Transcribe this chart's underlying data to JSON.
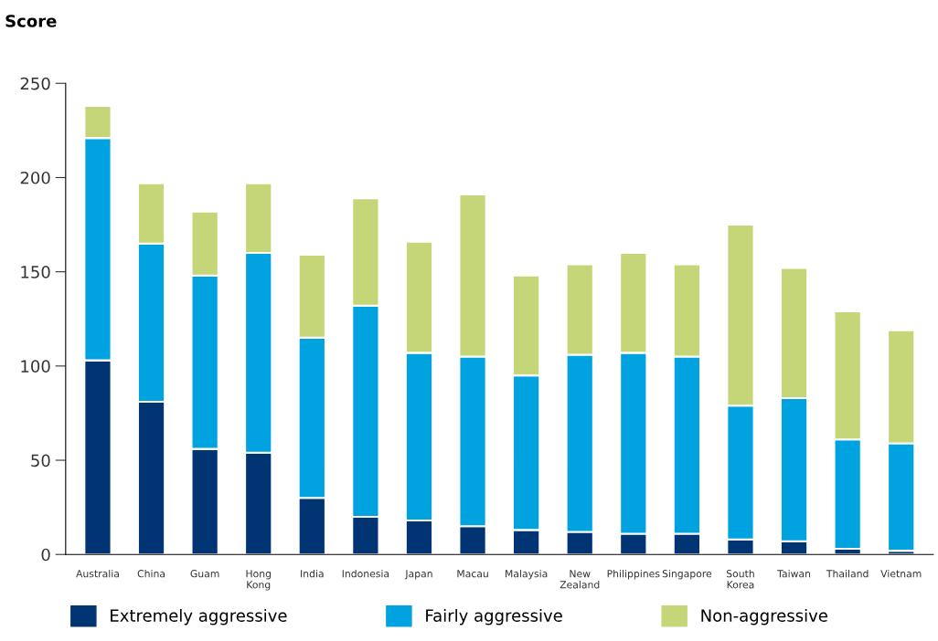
{
  "chart_data": {
    "type": "bar",
    "stacked": true,
    "ylabel": "Score",
    "categories": [
      "Australia",
      "China",
      "Guam",
      "Hong\nKong",
      "India",
      "Indonesia",
      "Japan",
      "Macau",
      "Malaysia",
      "New\nZealand",
      "Philippines",
      "Singapore",
      "South\nKorea",
      "Taiwan",
      "Thailand",
      "Vietnam"
    ],
    "series": [
      {
        "name": "Extremely aggressive",
        "color": "#003473",
        "values": [
          103,
          81,
          56,
          54,
          30,
          20,
          18,
          15,
          13,
          12,
          11,
          11,
          8,
          7,
          3,
          2
        ]
      },
      {
        "name": "Fairly aggressive",
        "color": "#00a3e0",
        "values": [
          118,
          84,
          92,
          106,
          85,
          112,
          89,
          90,
          82,
          94,
          96,
          94,
          71,
          76,
          58,
          57
        ]
      },
      {
        "name": "Non-aggressive",
        "color": "#c4d677",
        "values": [
          17,
          32,
          34,
          37,
          44,
          57,
          59,
          86,
          53,
          48,
          53,
          49,
          96,
          69,
          68,
          60
        ]
      }
    ],
    "ylim": [
      0,
      250
    ],
    "yticks": [
      0,
      50,
      100,
      150,
      200,
      250
    ],
    "legend": "bottom",
    "grid": false
  }
}
